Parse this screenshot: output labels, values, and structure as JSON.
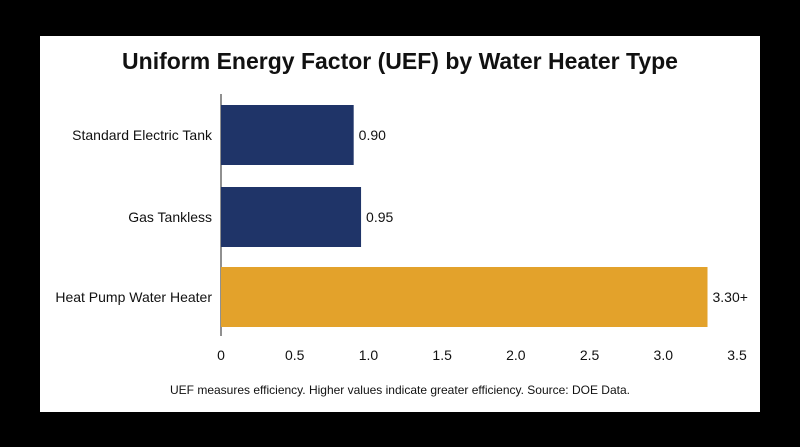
{
  "chart_data": {
    "type": "bar",
    "orientation": "horizontal",
    "title": "Uniform Energy Factor (UEF) by Water Heater Type",
    "footnote": "UEF measures efficiency. Higher values indicate greater efficiency. Source: DOE Data.",
    "xlabel": "",
    "ylabel": "",
    "categories": [
      "Standard Electric Tank",
      "Gas Tankless",
      "Heat Pump Water Heater"
    ],
    "values": [
      0.9,
      0.95,
      3.3
    ],
    "value_labels": [
      "0.90",
      "0.95",
      "3.30+"
    ],
    "bar_colors": [
      "#1f3468",
      "#1f3468",
      "#e3a22b"
    ],
    "xlim": [
      0,
      3.5
    ],
    "xticks": [
      "0",
      "0.5",
      "1.0",
      "1.5",
      "2.0",
      "2.5",
      "3.0",
      "3.5"
    ],
    "grid": false,
    "legend": "none"
  }
}
